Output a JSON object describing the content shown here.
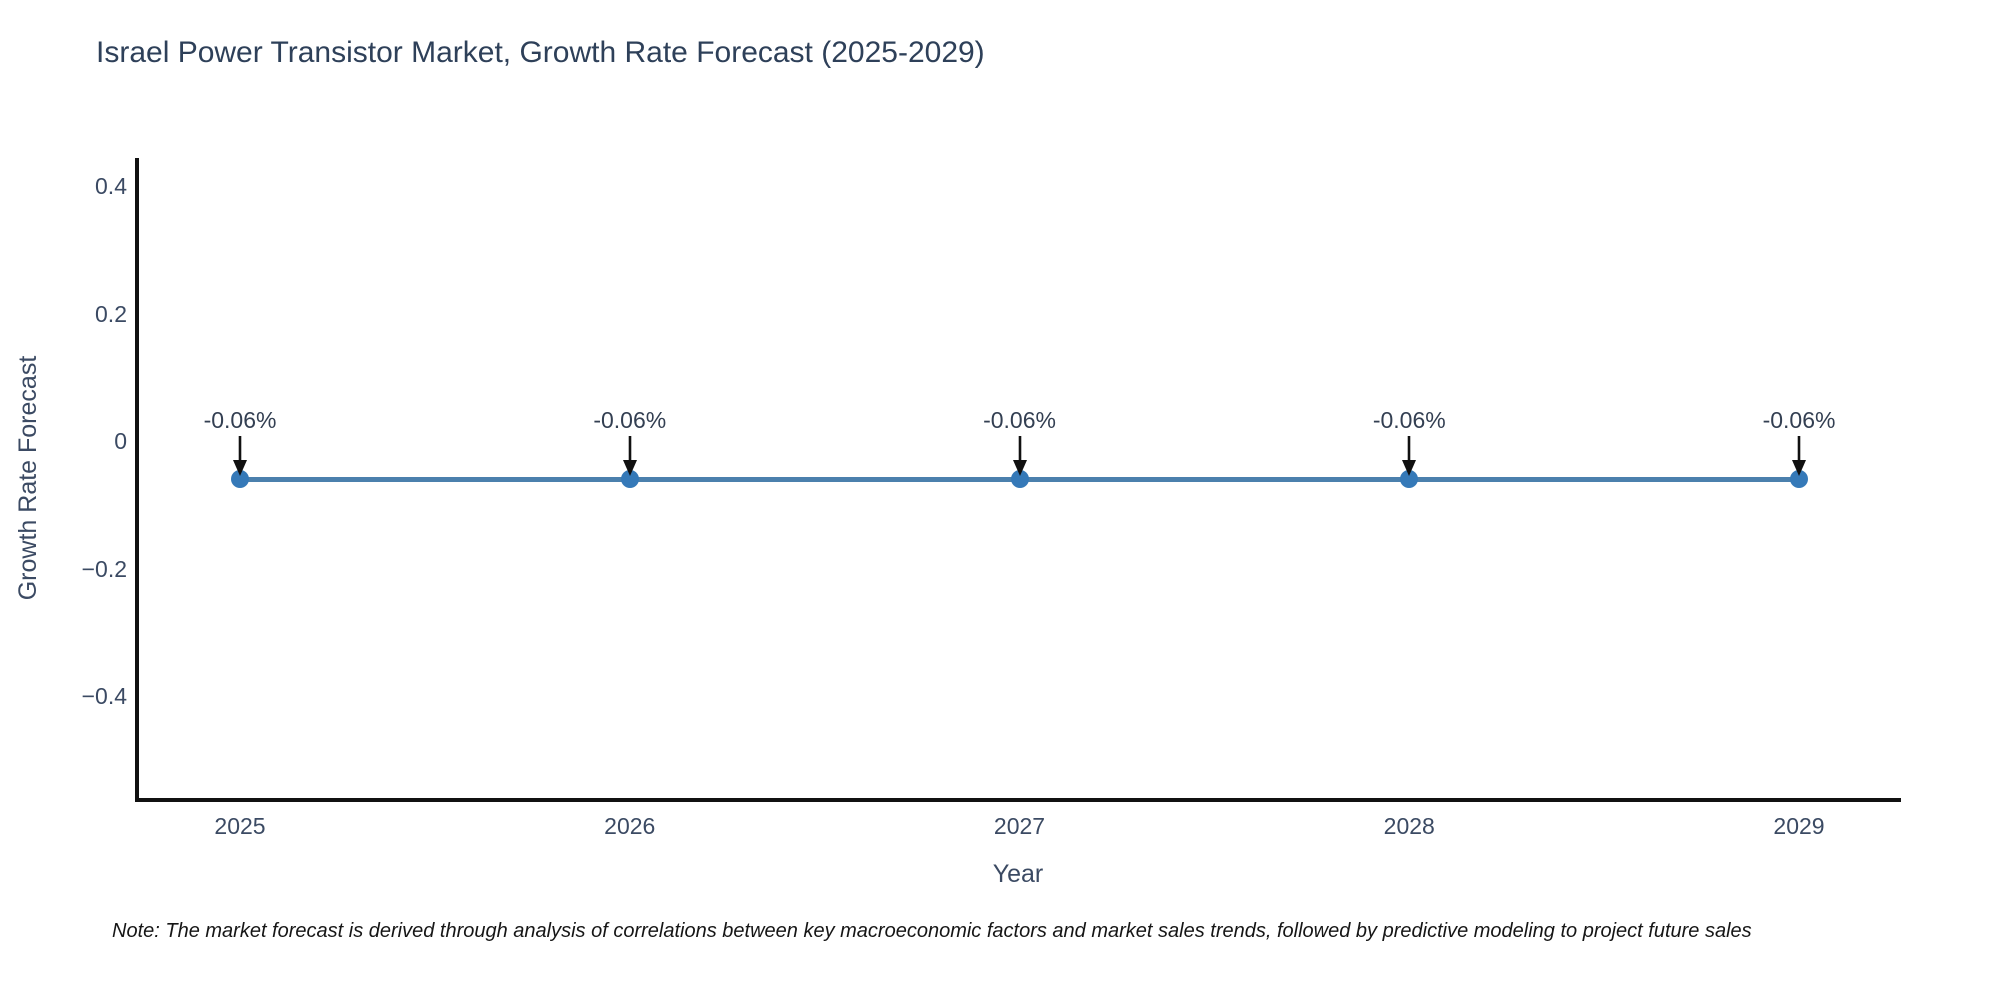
{
  "chart_data": {
    "type": "line",
    "title": "Israel Power Transistor Market, Growth Rate Forecast (2025-2029)",
    "xlabel": "Year",
    "ylabel": "Growth Rate Forecast",
    "x": [
      2025,
      2026,
      2027,
      2028,
      2029
    ],
    "xtick_labels": [
      "2025",
      "2026",
      "2027",
      "2028",
      "2029"
    ],
    "series": [
      {
        "name": "Growth Rate Forecast",
        "values": [
          -0.06,
          -0.06,
          -0.06,
          -0.06,
          -0.06
        ],
        "point_labels": [
          "-0.06%",
          "-0.06%",
          "-0.06%",
          "-0.06%",
          "-0.06%"
        ]
      }
    ],
    "yticks": [
      0.4,
      0.2,
      0,
      -0.2,
      -0.4
    ],
    "ytick_labels": [
      "0.4",
      "0.2",
      "0",
      "−0.2",
      "−0.4"
    ],
    "ylim": [
      -0.57,
      0.44
    ],
    "grid": false,
    "legend_position": "none",
    "annotation_style": "black-down-arrow",
    "colors": {
      "line": "#4b80ad",
      "marker": "#3579b8",
      "arrow": "#111111",
      "axis": "#111111",
      "title_text": "#2e4059",
      "tick_text": "#3b4a63"
    }
  },
  "note": {
    "text": "Note: The market forecast is derived through analysis of correlations between key macroeconomic factors and market sales trends, followed by predictive modeling to project future sales"
  }
}
